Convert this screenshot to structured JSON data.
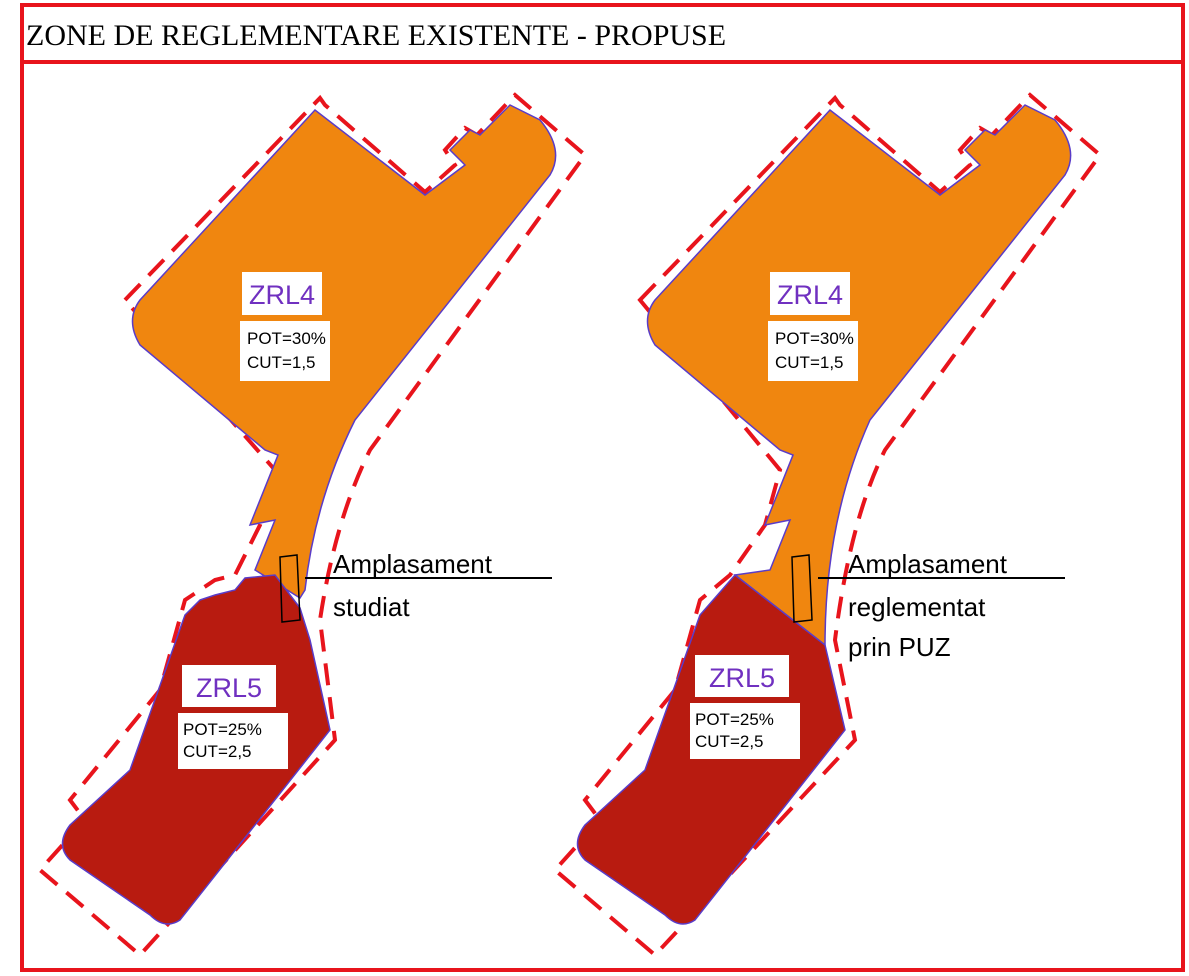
{
  "title": "ZONE DE REGLEMENTARE EXISTENTE - PROPUSE",
  "panels": [
    {
      "zones": [
        {
          "label": "ZRL4",
          "pot": "POT=30%",
          "cut": "CUT=1,5"
        },
        {
          "label": "ZRL5",
          "pot": "POT=25%",
          "cut": "CUT=2,5"
        }
      ],
      "callout": [
        "Amplasament",
        "studiat"
      ]
    },
    {
      "zones": [
        {
          "label": "ZRL4",
          "pot": "POT=30%",
          "cut": "CUT=1,5"
        },
        {
          "label": "ZRL5",
          "pot": "POT=25%",
          "cut": "CUT=2,5"
        }
      ],
      "callout": [
        "Amplasament",
        "reglementat",
        "prin PUZ"
      ]
    }
  ]
}
